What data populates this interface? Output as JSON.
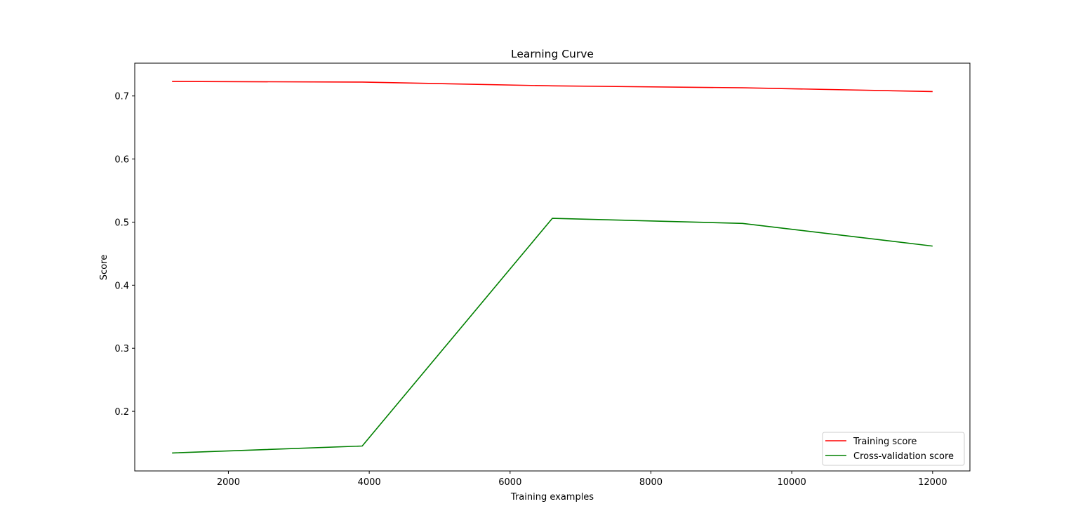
{
  "chart_data": {
    "type": "line",
    "title": "Learning Curve",
    "xlabel": "Training examples",
    "ylabel": "Score",
    "xlim": [
      670,
      12530
    ],
    "ylim": [
      0.1055,
      0.752
    ],
    "xticks": [
      2000,
      4000,
      6000,
      8000,
      10000,
      12000
    ],
    "xtick_labels": [
      "2000",
      "4000",
      "6000",
      "8000",
      "10000",
      "12000"
    ],
    "yticks": [
      0.2,
      0.3,
      0.4,
      0.5,
      0.6,
      0.7
    ],
    "ytick_labels": [
      "0.2",
      "0.3",
      "0.4",
      "0.5",
      "0.6",
      "0.7"
    ],
    "grid": false,
    "legend_position": "lower-right",
    "x": [
      1200,
      3900,
      6600,
      9300,
      12000
    ],
    "series": [
      {
        "name": "Training score",
        "color": "#ff0000",
        "values": [
          0.723,
          0.722,
          0.716,
          0.713,
          0.707
        ]
      },
      {
        "name": "Cross-validation score",
        "color": "#008000",
        "values": [
          0.134,
          0.145,
          0.506,
          0.498,
          0.462
        ]
      }
    ]
  }
}
